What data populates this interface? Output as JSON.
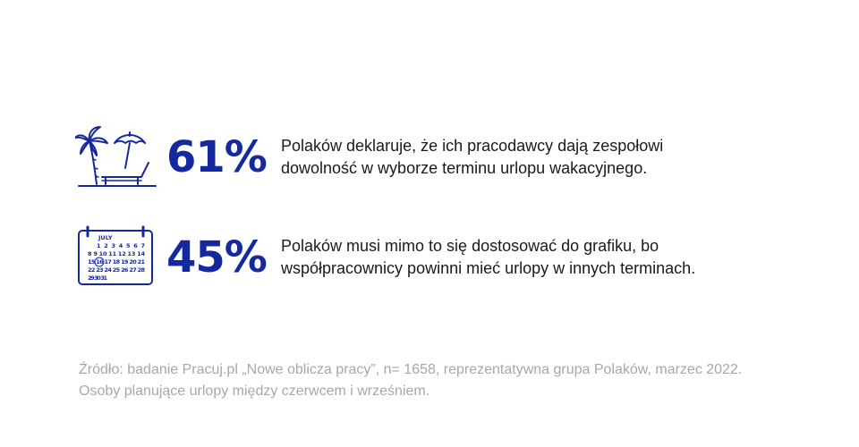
{
  "stats": [
    {
      "icon": "beach-palm-umbrella-icon",
      "percent": "61%",
      "line1": "Polaków deklaruje, że ich pracodawcy dają zespołowi",
      "line2": "dowolność w wyborze terminu urlopu wakacyjnego."
    },
    {
      "icon": "calendar-icon",
      "percent": "45%",
      "line1": "Polaków musi mimo to się dostosować do grafiku, bo",
      "line2": "współpracownicy powinni mieć urlopy w innych terminach."
    }
  ],
  "calendar": {
    "month": "JULY",
    "week1": "1 2 3 4 5 6 7",
    "week2": "8 9 10 11 12 13 14",
    "week3": "15 16 17 18 19 20 21",
    "week4": "22 23 24 25 26 27 28",
    "week5": "29 30 31"
  },
  "source": {
    "line1": "Źródło: badanie Pracuj.pl „Nowe oblicza pracy”, n= 1658, reprezentatywna grupa Polaków, marzec 2022.",
    "line2": "Osoby planujące urlopy między czerwcem i wrześniem."
  },
  "colors": {
    "accent": "#1428a0",
    "text": "#1a1a1a",
    "muted": "#a7a7a7"
  }
}
